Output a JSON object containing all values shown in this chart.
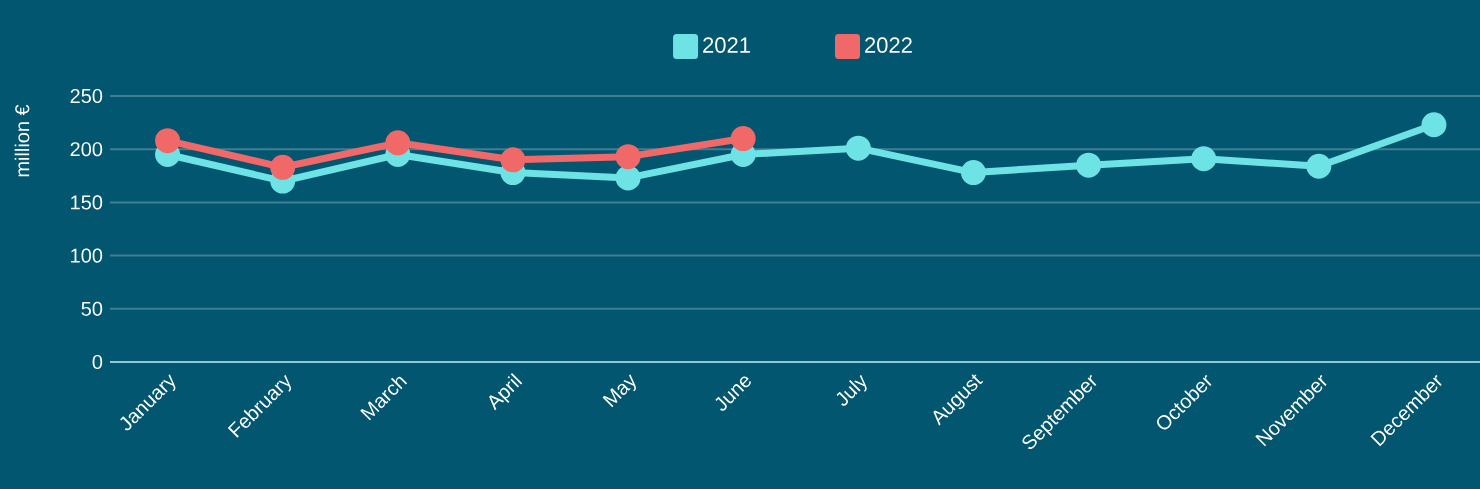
{
  "chart_data": {
    "type": "line",
    "ylabel": "million €",
    "categories": [
      "January",
      "February",
      "March",
      "April",
      "May",
      "June",
      "July",
      "August",
      "September",
      "October",
      "November",
      "December"
    ],
    "series": [
      {
        "name": "2021",
        "color": "#6ee3e6",
        "values": [
          195,
          170,
          195,
          178,
          173,
          195,
          201,
          178,
          185,
          191,
          184,
          223
        ]
      },
      {
        "name": "2022",
        "color": "#f06868",
        "values": [
          208,
          183,
          206,
          190,
          193,
          210,
          null,
          null,
          null,
          null,
          null,
          null
        ]
      }
    ],
    "ylim": [
      0,
      250
    ],
    "yticks": [
      0,
      50,
      100,
      150,
      200,
      250
    ],
    "grid": "y",
    "legend": "top",
    "marker": "circle",
    "line_style": "solid"
  }
}
